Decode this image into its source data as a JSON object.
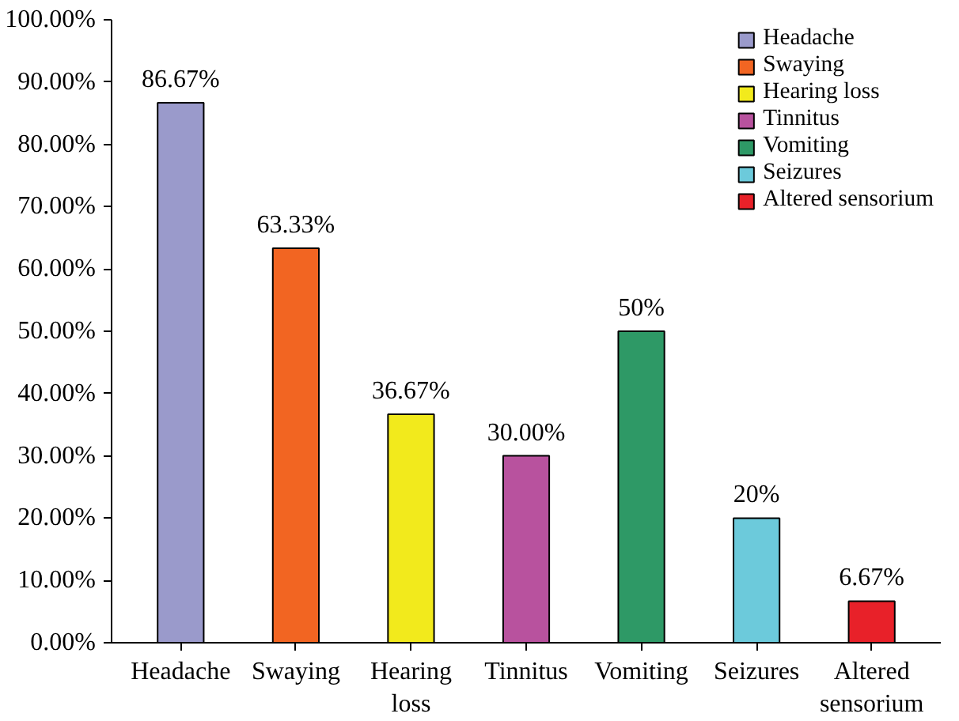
{
  "chart_data": {
    "type": "bar",
    "categories": [
      "Headache",
      "Swaying",
      "Hearing loss",
      "Tinnitus",
      "Vomiting",
      "Seizures",
      "Altered sensorium"
    ],
    "series": [
      {
        "name": "Headache",
        "color": "#9a9acb",
        "values": [
          86.67,
          null,
          null,
          null,
          null,
          null,
          null
        ],
        "value_labels": [
          "86.67%",
          null,
          null,
          null,
          null,
          null,
          null
        ]
      },
      {
        "name": "Swaying",
        "color": "#f26522",
        "values": [
          null,
          63.33,
          null,
          null,
          null,
          null,
          null
        ],
        "value_labels": [
          null,
          "63.33%",
          null,
          null,
          null,
          null,
          null
        ]
      },
      {
        "name": "Hearing loss",
        "color": "#f2ea1c",
        "values": [
          null,
          null,
          36.67,
          null,
          null,
          null,
          null
        ],
        "value_labels": [
          null,
          null,
          "36.67%",
          null,
          null,
          null,
          null
        ]
      },
      {
        "name": "Tinnitus",
        "color": "#b8529e",
        "values": [
          null,
          null,
          null,
          30.0,
          null,
          null,
          null
        ],
        "value_labels": [
          null,
          null,
          null,
          "30.00%",
          null,
          null,
          null
        ]
      },
      {
        "name": "Vomiting",
        "color": "#2e9966",
        "values": [
          null,
          null,
          null,
          null,
          50,
          null,
          null
        ],
        "value_labels": [
          null,
          null,
          null,
          null,
          "50%",
          null,
          null
        ]
      },
      {
        "name": "Seizures",
        "color": "#6ccadb",
        "values": [
          null,
          null,
          null,
          null,
          null,
          20,
          null
        ],
        "value_labels": [
          null,
          null,
          null,
          null,
          null,
          "20%",
          null
        ]
      },
      {
        "name": "Altered sensorium",
        "color": "#e82129",
        "values": [
          null,
          null,
          null,
          null,
          null,
          null,
          6.67
        ],
        "value_labels": [
          null,
          null,
          null,
          null,
          null,
          null,
          "6.67%"
        ]
      }
    ],
    "ylim": [
      0,
      100
    ],
    "yticks": [
      {
        "value": 0,
        "label": "0.00%"
      },
      {
        "value": 10,
        "label": "10.00%"
      },
      {
        "value": 20,
        "label": "20.00%"
      },
      {
        "value": 30,
        "label": "30.00%"
      },
      {
        "value": 40,
        "label": "40.00%"
      },
      {
        "value": 50,
        "label": "50.00%"
      },
      {
        "value": 60,
        "label": "60.00%"
      },
      {
        "value": 70,
        "label": "70.00%"
      },
      {
        "value": 80,
        "label": "80.00%"
      },
      {
        "value": 90,
        "label": "90.00%"
      },
      {
        "value": 100,
        "label": "100.00%"
      }
    ],
    "grid": false,
    "legend": "top right"
  }
}
